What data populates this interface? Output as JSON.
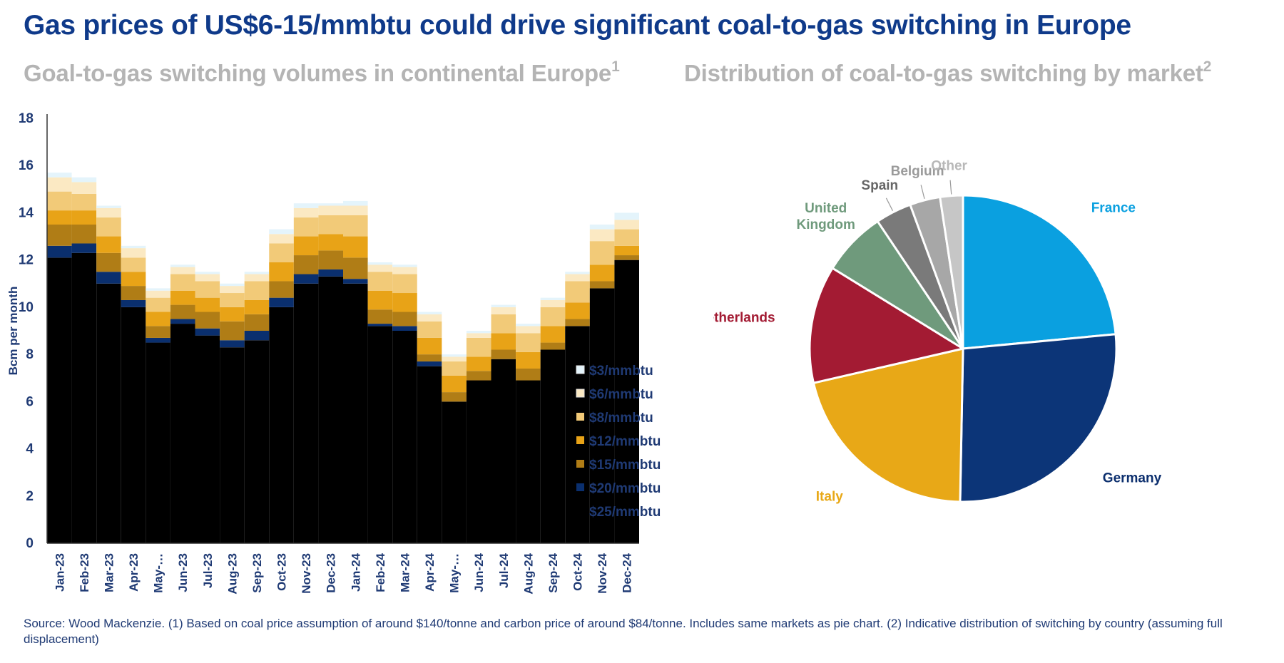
{
  "header": {
    "title": "Gas prices of US$6-15/mmbtu could drive significant coal-to-gas switching in Europe",
    "left_subtitle": "Goal-to-gas switching volumes in continental Europe",
    "left_subtitle_note": "1",
    "right_subtitle": "Distribution of coal-to-gas switching by market",
    "right_subtitle_note": "2"
  },
  "colors": {
    "title": "#0f3a8a",
    "subtitle": "#b4b4b4",
    "axis_text": "#1f3a74"
  },
  "chart_data": [
    {
      "type": "bar",
      "stacked": true,
      "ylabel": "Bcm per month",
      "ylim": [
        0,
        18
      ],
      "yticks": [
        0,
        2,
        4,
        6,
        8,
        10,
        12,
        14,
        16,
        18
      ],
      "grid": false,
      "legend_position": "right",
      "categories": [
        "Jan-23",
        "Feb-23",
        "Mar-23",
        "Apr-23",
        "May-…",
        "Jun-23",
        "Jul-23",
        "Aug-23",
        "Sep-23",
        "Oct-23",
        "Nov-23",
        "Dec-23",
        "Jan-24",
        "Feb-24",
        "Mar-24",
        "Apr-24",
        "May-…",
        "Jun-24",
        "Jul-24",
        "Aug-24",
        "Sep-24",
        "Oct-24",
        "Nov-24",
        "Dec-24"
      ],
      "series": [
        {
          "name": "$25/mmbtu",
          "color": "#000000",
          "values": [
            12.1,
            12.3,
            11.0,
            10.0,
            8.5,
            9.3,
            8.8,
            8.3,
            8.6,
            10.0,
            11.0,
            11.3,
            11.0,
            9.2,
            9.0,
            7.5,
            6.0,
            6.9,
            7.8,
            6.9,
            8.2,
            9.2,
            10.8,
            12.0
          ]
        },
        {
          "name": "$20/mmbtu",
          "color": "#0a2f6e",
          "values": [
            0.5,
            0.4,
            0.5,
            0.3,
            0.2,
            0.2,
            0.3,
            0.3,
            0.4,
            0.4,
            0.4,
            0.3,
            0.2,
            0.1,
            0.2,
            0.2,
            0,
            0,
            0,
            0,
            0,
            0,
            0,
            0
          ]
        },
        {
          "name": "$15/mmbtu",
          "color": "#b07d16",
          "values": [
            0.9,
            0.8,
            0.8,
            0.6,
            0.5,
            0.6,
            0.7,
            0.8,
            0.7,
            0.7,
            0.8,
            0.8,
            0.9,
            0.6,
            0.6,
            0.3,
            0.4,
            0.4,
            0.4,
            0.5,
            0.3,
            0.3,
            0.3,
            0.2
          ]
        },
        {
          "name": "$12/mmbtu",
          "color": "#e8a317",
          "values": [
            0.6,
            0.6,
            0.7,
            0.6,
            0.6,
            0.6,
            0.6,
            0.6,
            0.6,
            0.8,
            0.8,
            0.7,
            0.9,
            0.8,
            0.8,
            0.7,
            0.7,
            0.6,
            0.7,
            0.7,
            0.7,
            0.7,
            0.7,
            0.4
          ]
        },
        {
          "name": "$8/mmbtu",
          "color": "#f2ca78",
          "values": [
            0.8,
            0.7,
            0.8,
            0.6,
            0.6,
            0.7,
            0.7,
            0.6,
            0.8,
            0.8,
            0.8,
            0.8,
            0.9,
            0.8,
            0.8,
            0.7,
            0.6,
            0.8,
            0.8,
            0.8,
            0.8,
            0.9,
            1.0,
            0.7
          ]
        },
        {
          "name": "$6/mmbtu",
          "color": "#fbe9c3",
          "values": [
            0.6,
            0.5,
            0.4,
            0.4,
            0.3,
            0.3,
            0.3,
            0.3,
            0.3,
            0.4,
            0.4,
            0.4,
            0.4,
            0.3,
            0.3,
            0.3,
            0.2,
            0.2,
            0.3,
            0.3,
            0.3,
            0.3,
            0.5,
            0.4
          ]
        },
        {
          "name": "$3/mmbtu",
          "color": "#e4f4fb",
          "values": [
            0.2,
            0.2,
            0.1,
            0.1,
            0.1,
            0.1,
            0.1,
            0.1,
            0.1,
            0.2,
            0.2,
            0.1,
            0.2,
            0.1,
            0.1,
            0.1,
            0.1,
            0.1,
            0.1,
            0.1,
            0.1,
            0.1,
            0.2,
            0.3
          ]
        }
      ]
    },
    {
      "type": "pie",
      "start_angle_deg": 0,
      "slices": [
        {
          "label": "France",
          "value": 23.5,
          "color": "#0aa0e0",
          "label_color": "#0aa0e0"
        },
        {
          "label": "Germany",
          "value": 26.8,
          "color": "#0c3578",
          "label_color": "#0c2f6e"
        },
        {
          "label": "Italy",
          "value": 21.1,
          "color": "#e8a817",
          "label_color": "#e8a817"
        },
        {
          "label": "Netherlands",
          "value": 12.4,
          "color": "#a31b33",
          "label_color": "#a31b33"
        },
        {
          "label": "United Kingdom",
          "value": 6.8,
          "color": "#6f9a7c",
          "label_color": "#6f9a7c"
        },
        {
          "label": "Spain",
          "value": 3.8,
          "color": "#7a7a7a",
          "label_color": "#666666"
        },
        {
          "label": "Belgium",
          "value": 3.2,
          "color": "#a7a7a7",
          "label_color": "#9a9a9a"
        },
        {
          "label": "Other",
          "value": 2.4,
          "color": "#c6c6c6",
          "label_color": "#b8b8b8"
        }
      ]
    }
  ],
  "footer": {
    "source": "Source: Wood Mackenzie. (1) Based on coal price assumption of around $140/tonne and carbon price of around $84/tonne. Includes same markets as pie chart. (2) Indicative distribution of switching by country (assuming full displacement)"
  }
}
